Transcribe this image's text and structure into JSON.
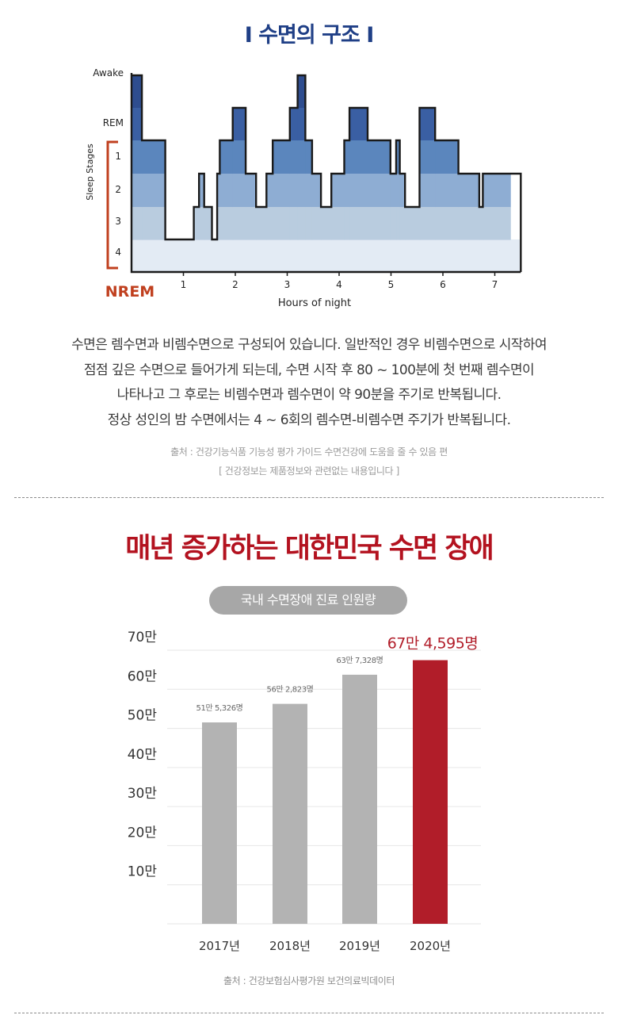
{
  "section1": {
    "title": "I 수면의 구조 I",
    "description_lines": [
      "수면은 렘수면과 비렘수면으로 구성되어 있습니다. 일반적인 경우 비렘수면으로 시작하여",
      "점점 깊은 수면으로 들어가게 되는데, 수면 시작 후 80 ~ 100분에 첫 번째 렘수면이",
      "나타나고  그 후로는 비렘수면과 렘수면이 약 90분을 주기로 반복됩니다.",
      "정상 성인의 밤 수면에서는 4 ~ 6회의 렘수면-비렘수면 주기가 반복됩니다."
    ],
    "source_lines": [
      "출처 : 건강기능식품 기능성 평가 가이드 수면건강에 도움을 줄 수 있음 편",
      "[ 건강정보는 제품정보와 관련없는 내용입니다 ]"
    ]
  },
  "section2": {
    "title": "매년 증가하는 대한민국 수면 장애",
    "pill_label": "국내 수면장애 진료 인원량",
    "source": "출처 : 건강보험심사평가원 보건의료빅데이터"
  },
  "colors": {
    "title_blue": "#1f3f86",
    "nrem_red": "#c0401f",
    "band_awake": "#2e4d8f",
    "band_rem": "#3a5fa3",
    "band_1": "#5b86bd",
    "band_2": "#8eadd3",
    "band_3": "#b9ccdf",
    "band_4": "#e3ebf4",
    "bar_gray": "#b3b3b3",
    "bar_highlight": "#b11d29",
    "headline_red": "#b3121f"
  },
  "chart_data": [
    {
      "type": "line",
      "xlabel": "Hours of night",
      "ylabel": "Sleep Stages",
      "bracket_label": "NREM",
      "x_ticks": [
        "1",
        "2",
        "3",
        "4",
        "5",
        "6",
        "7"
      ],
      "x_range": [
        0,
        7.5
      ],
      "y_stage_labels": [
        "Awake",
        "REM",
        "1",
        "2",
        "3",
        "4"
      ],
      "hypnogram_x": [
        0,
        0.2,
        0.2,
        0.65,
        0.65,
        1.2,
        1.2,
        1.3,
        1.3,
        1.4,
        1.4,
        1.55,
        1.55,
        1.65,
        1.65,
        1.7,
        1.7,
        1.95,
        1.95,
        2.2,
        2.2,
        2.4,
        2.4,
        2.6,
        2.6,
        2.72,
        2.72,
        3.05,
        3.05,
        3.2,
        3.2,
        3.35,
        3.35,
        3.48,
        3.48,
        3.65,
        3.65,
        3.85,
        3.85,
        4.1,
        4.1,
        4.2,
        4.2,
        4.55,
        4.55,
        4.99,
        4.99,
        5.1,
        5.1,
        5.17,
        5.17,
        5.27,
        5.27,
        5.55,
        5.55,
        5.85,
        5.85,
        6.3,
        6.3,
        6.7,
        6.7,
        6.77,
        6.77,
        7.3
      ],
      "hypnogram_y": [
        0,
        0,
        2,
        2,
        5,
        5,
        4,
        4,
        3,
        3,
        4,
        4,
        5,
        5,
        3,
        3,
        2,
        2,
        1,
        1,
        3,
        3,
        4,
        4,
        3,
        3,
        2,
        2,
        1,
        1,
        0,
        0,
        2,
        2,
        3,
        3,
        4,
        4,
        3,
        3,
        2,
        2,
        1,
        1,
        2,
        2,
        3,
        3,
        2,
        2,
        3,
        3,
        4,
        4,
        1,
        1,
        2,
        2,
        3,
        3,
        4,
        4,
        3,
        3
      ]
    },
    {
      "type": "bar",
      "title": "국내 수면장애 진료 인원량",
      "categories": [
        "2017년",
        "2018년",
        "2019년",
        "2020년"
      ],
      "values": [
        515326,
        562823,
        637328,
        674595
      ],
      "data_labels": [
        "51만 5,326명",
        "56만 2,823명",
        "63만 7,328명",
        "67만 4,595명"
      ],
      "y_tick_labels": [
        "10만",
        "20만",
        "30만",
        "40만",
        "50만",
        "60만",
        "70만"
      ],
      "y_ticks": [
        100000,
        200000,
        300000,
        400000,
        500000,
        600000,
        700000
      ],
      "ylim": [
        0,
        700000
      ],
      "highlight_index": 3,
      "grid": true
    }
  ]
}
